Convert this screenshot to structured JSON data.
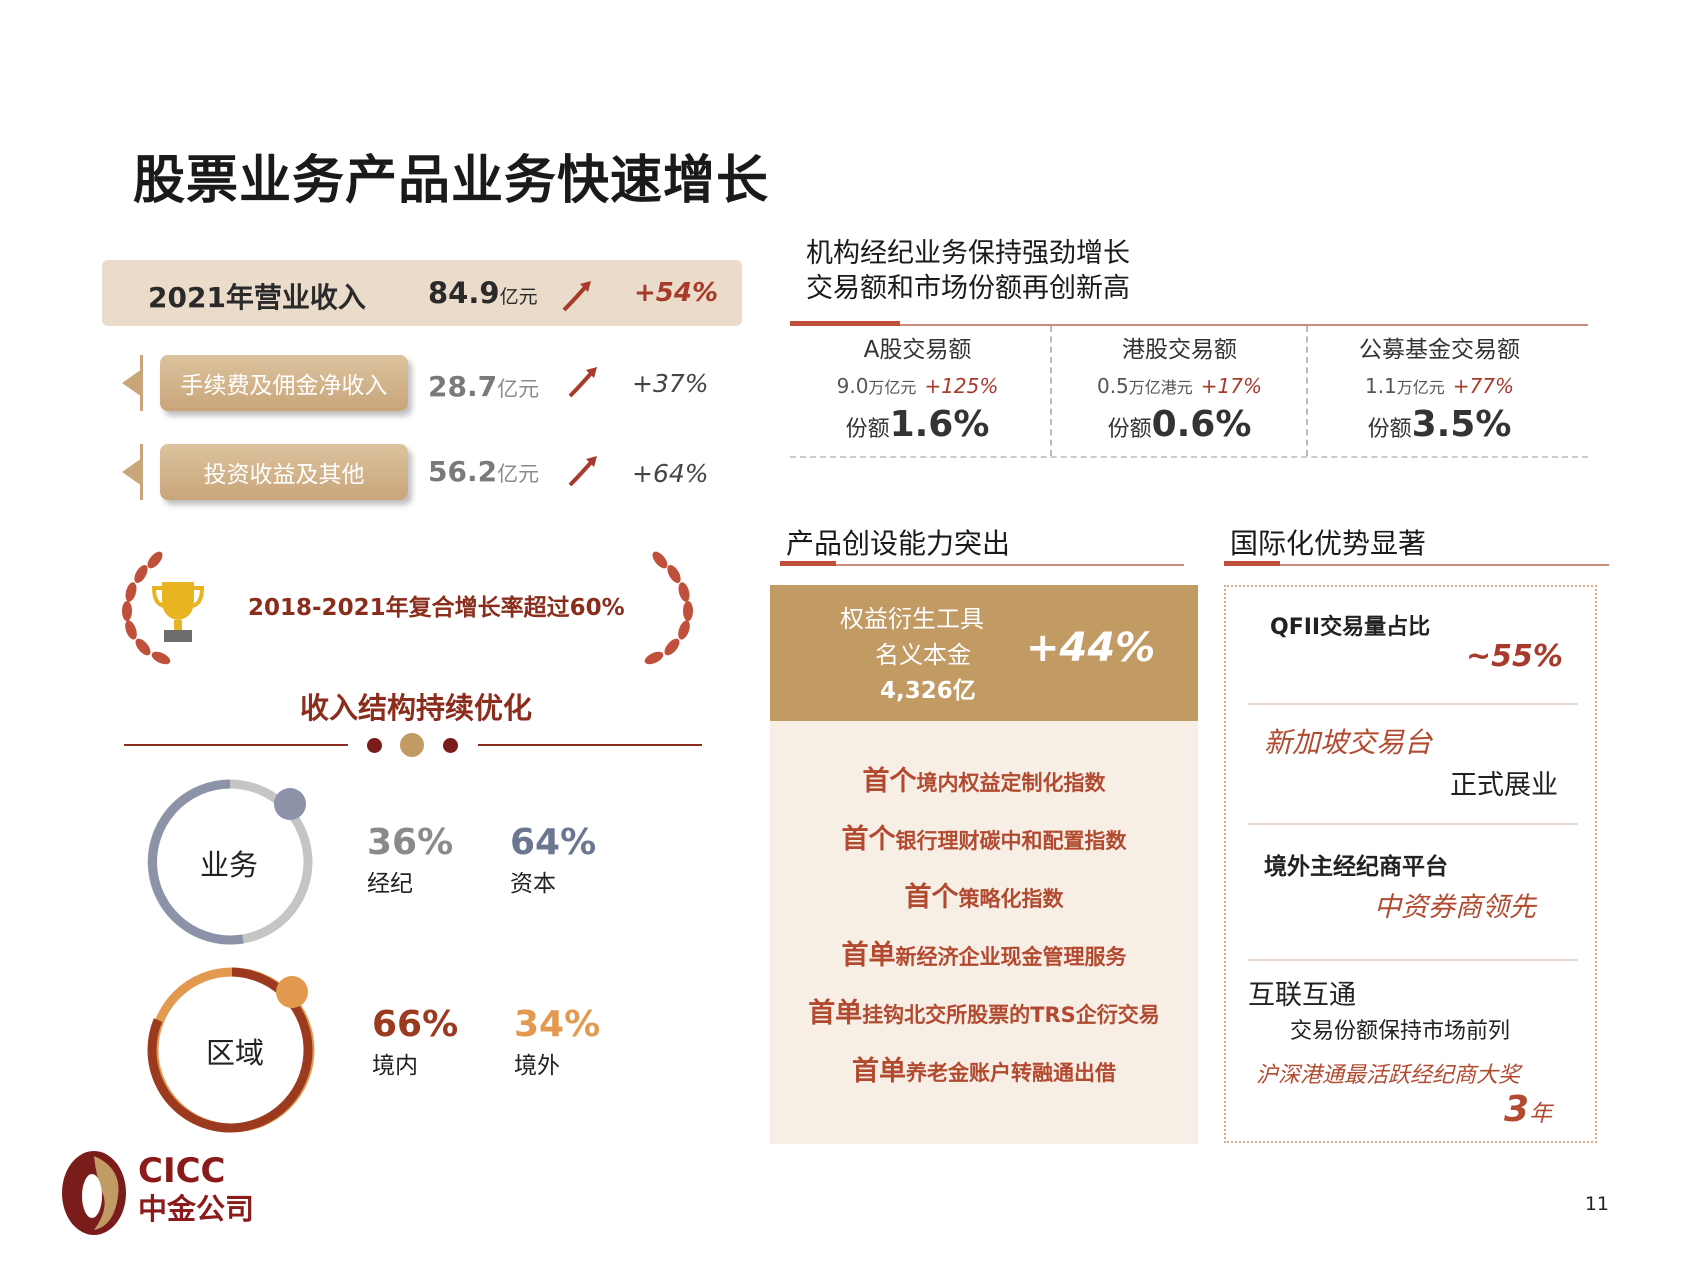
{
  "title": "股票业务产品业务快速增长",
  "revenue": {
    "label": "2021年营业收入",
    "value": "84.9",
    "unit": "亿元",
    "growth": "+54%"
  },
  "sub_revenues": [
    {
      "label": "手续费及佣金净收入",
      "value": "28.7",
      "unit": "亿元",
      "growth": "+37%"
    },
    {
      "label": "投资收益及其他",
      "value": "56.2",
      "unit": "亿元",
      "growth": "+64%"
    }
  ],
  "cagr": "2018-2021年复合增长率超过60%",
  "structure": {
    "title": "收入结构持续优化",
    "rings": [
      {
        "label": "业务",
        "items": [
          {
            "pct": "36%",
            "name": "经纪"
          },
          {
            "pct": "64%",
            "name": "资本"
          }
        ]
      },
      {
        "label": "区域",
        "items": [
          {
            "pct": "66%",
            "name": "境内"
          },
          {
            "pct": "34%",
            "name": "境外"
          }
        ]
      }
    ]
  },
  "institutional": {
    "title_line1": "机构经纪业务保持强劲增长",
    "title_line2": "交易额和市场份额再创新高",
    "columns": [
      {
        "header": "A股交易额",
        "amount": "9.0",
        "unit": "万亿元",
        "growth": "+125%",
        "share_label": "份额",
        "share": "1.6%"
      },
      {
        "header": "港股交易额",
        "amount": "0.5",
        "unit": "万亿港元",
        "growth": "+17%",
        "share_label": "份额",
        "share": "0.6%"
      },
      {
        "header": "公募基金交易额",
        "amount": "1.1",
        "unit": "万亿元",
        "growth": "+77%",
        "share_label": "份额",
        "share": "3.5%"
      }
    ]
  },
  "product": {
    "title": "产品创设能力突出",
    "highlight_line1": "权益衍生工具",
    "highlight_line2": "名义本金",
    "highlight_value": "4,326亿",
    "highlight_growth": "+44%",
    "firsts": [
      {
        "prefix": "首个",
        "text": "境内权益定制化指数"
      },
      {
        "prefix": "首个",
        "text": "银行理财碳中和配置指数"
      },
      {
        "prefix": "首个",
        "text": "策略化指数"
      },
      {
        "prefix": "首单",
        "text": "新经济企业现金管理服务"
      },
      {
        "prefix": "首单",
        "text": "挂钩北交所股票的TRS企衍交易"
      },
      {
        "prefix": "首单",
        "text": "养老金账户转融通出借"
      }
    ]
  },
  "international": {
    "title": "国际化优势显著",
    "qfii_label": "QFII交易量占比",
    "qfii_value": "~55%",
    "sg_line1": "新加坡交易台",
    "sg_line2": "正式展业",
    "overseas_line1": "境外主经纪商平台",
    "overseas_line2": "中资券商领先",
    "connect_line1": "互联互通",
    "connect_line2": "交易份额保持市场前列",
    "connect_line3": "沪深港通最活跃经纪商大奖",
    "connect_years_num": "3",
    "connect_years_unit": "年"
  },
  "logo": {
    "line1": "CICC",
    "line2": "中金公司"
  },
  "page_number": "11",
  "colors": {
    "accent_red": "#8b2d1c",
    "gold": "#c29a64",
    "cream": "#f7efe6",
    "grey_ring": "#8c93a8",
    "orange_ring": "#e39a4f"
  }
}
